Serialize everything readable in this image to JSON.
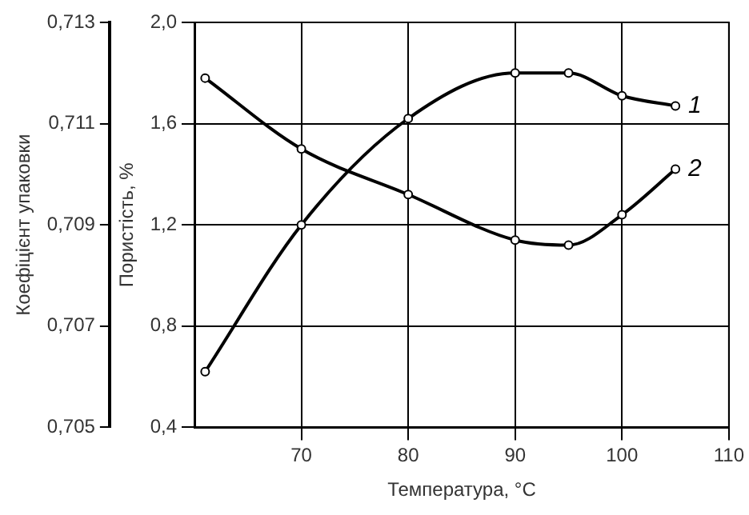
{
  "chart_data": {
    "type": "line",
    "xlabel": "Температура, °C",
    "ylabel": "Пористість, %",
    "y2label": "Коефіцієнт упаковки",
    "x": [
      61,
      70,
      80,
      90,
      95,
      100,
      105
    ],
    "series": [
      {
        "name": "1",
        "color": "#000000",
        "values": [
          0.62,
          1.2,
          1.62,
          1.8,
          1.8,
          1.71,
          1.67
        ]
      },
      {
        "name": "2",
        "color": "#000000",
        "axis": "y2",
        "values": [
          0.7119,
          0.7105,
          0.7096,
          0.7087,
          0.7086,
          0.7092,
          0.7101
        ]
      }
    ],
    "xlim": [
      60,
      110
    ],
    "xticks": [
      70,
      80,
      90,
      100,
      110
    ],
    "ylim": [
      0.4,
      2.0
    ],
    "yticks": [
      {
        "value": 0.4,
        "label": "0,4"
      },
      {
        "value": 0.8,
        "label": "0,8"
      },
      {
        "value": 1.2,
        "label": "1,2"
      },
      {
        "value": 1.6,
        "label": "1,6"
      },
      {
        "value": 2.0,
        "label": "2,0"
      }
    ],
    "y2lim": [
      0.705,
      0.713
    ],
    "y2ticks": [
      {
        "value": 0.705,
        "label": "0,705"
      },
      {
        "value": 0.707,
        "label": "0,707"
      },
      {
        "value": 0.709,
        "label": "0,709"
      },
      {
        "value": 0.711,
        "label": "0,711"
      },
      {
        "value": 0.713,
        "label": "0,713"
      }
    ],
    "grid": true,
    "legend": false,
    "marker": "circle",
    "line_style": "solid"
  }
}
